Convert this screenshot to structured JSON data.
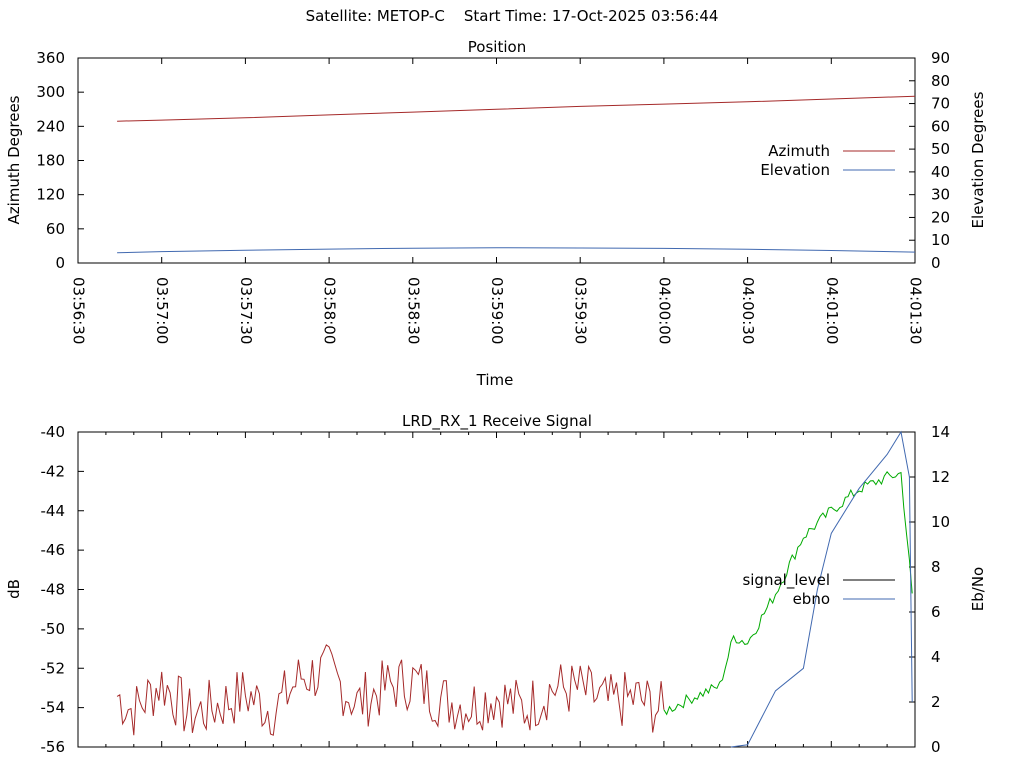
{
  "header": {
    "satellite": "Satellite: METOP-C",
    "start_time": "Start Time: 17-Oct-2025 03:56:44"
  },
  "chart_data": [
    {
      "type": "line",
      "title": "Position",
      "xlabel": "Time",
      "ylabel": "Azimuth Degrees",
      "y2label": "Elevation Degrees",
      "xlim": [
        "03:56:30",
        "04:01:30"
      ],
      "ylim": [
        0,
        360
      ],
      "y2lim": [
        0,
        90
      ],
      "xticks": [
        "03:56:30",
        "03:57:00",
        "03:57:30",
        "03:58:00",
        "03:58:30",
        "03:59:00",
        "03:59:30",
        "04:00:00",
        "04:00:30",
        "04:01:00",
        "04:01:30"
      ],
      "yticks": [
        0,
        60,
        120,
        180,
        240,
        300,
        360
      ],
      "y2ticks": [
        0,
        10,
        20,
        30,
        40,
        50,
        60,
        70,
        80,
        90
      ],
      "legend_position": "right",
      "grid": false,
      "series": [
        {
          "name": "Azimuth",
          "axis": "y",
          "color": "#a52a2a",
          "x": [
            "03:56:44",
            "03:57:00",
            "03:57:30",
            "03:58:00",
            "03:58:30",
            "03:59:00",
            "03:59:30",
            "04:00:00",
            "04:00:30",
            "04:01:00",
            "04:01:30"
          ],
          "y": [
            249,
            251,
            255,
            260,
            265,
            270,
            275,
            279,
            283,
            288,
            293
          ]
        },
        {
          "name": "Elevation",
          "axis": "y2",
          "color": "#4169b0",
          "x": [
            "03:56:44",
            "03:57:00",
            "03:57:30",
            "03:58:00",
            "03:58:30",
            "03:59:00",
            "03:59:30",
            "04:00:00",
            "04:00:30",
            "04:01:00",
            "04:01:30"
          ],
          "y": [
            4.5,
            5.0,
            5.6,
            6.1,
            6.5,
            6.7,
            6.6,
            6.4,
            6.0,
            5.5,
            4.8
          ]
        }
      ]
    },
    {
      "type": "line",
      "title": "LRD_RX_1 Receive Signal",
      "ylabel": "dB",
      "y2label": "Eb/No",
      "xlim": [
        "03:56:30",
        "04:01:30"
      ],
      "ylim": [
        -56,
        -40
      ],
      "y2lim": [
        0,
        14
      ],
      "yticks": [
        -56,
        -54,
        -52,
        -50,
        -48,
        -46,
        -44,
        -42,
        -40
      ],
      "y2ticks": [
        0,
        2,
        4,
        6,
        8,
        10,
        12,
        14
      ],
      "legend_position": "right",
      "grid": false,
      "series": [
        {
          "name": "signal_level",
          "axis": "y",
          "color": "#000000",
          "noise_color": "#a52a2a",
          "lock_color": "#00aa00",
          "lock_from": "04:00:00",
          "x": [
            "03:56:44",
            "03:56:50",
            "03:57:00",
            "03:57:10",
            "03:57:20",
            "03:57:30",
            "03:57:40",
            "03:57:50",
            "03:58:00",
            "03:58:10",
            "03:58:20",
            "03:58:30",
            "03:58:40",
            "03:58:50",
            "03:59:00",
            "03:59:10",
            "03:59:20",
            "03:59:30",
            "03:59:40",
            "03:59:50",
            "04:00:00",
            "04:00:10",
            "04:00:20",
            "04:00:25",
            "04:00:30",
            "04:00:40",
            "04:00:50",
            "04:01:00",
            "04:01:10",
            "04:01:20",
            "04:01:25",
            "04:01:29"
          ],
          "y": [
            -53.4,
            -54.2,
            -52.7,
            -54.4,
            -53.9,
            -53.3,
            -54.2,
            -52.4,
            -52.2,
            -53.8,
            -53.0,
            -52.6,
            -53.6,
            -53.9,
            -53.4,
            -54.1,
            -53.0,
            -53.1,
            -53.8,
            -53.5,
            -54.2,
            -53.5,
            -52.9,
            -50.4,
            -50.7,
            -48.2,
            -45.3,
            -44.0,
            -42.9,
            -42.3,
            -42.1,
            -48.2
          ]
        },
        {
          "name": "ebno",
          "axis": "y2",
          "color": "#4169b0",
          "x": [
            "04:00:24",
            "04:00:30",
            "04:00:40",
            "04:00:50",
            "04:00:55",
            "04:01:00",
            "04:01:10",
            "04:01:20",
            "04:01:25",
            "04:01:28",
            "04:01:29"
          ],
          "y": [
            0,
            0.1,
            2.5,
            3.5,
            7.0,
            9.5,
            11.5,
            13.0,
            14.0,
            12.0,
            2.0
          ]
        }
      ]
    }
  ]
}
